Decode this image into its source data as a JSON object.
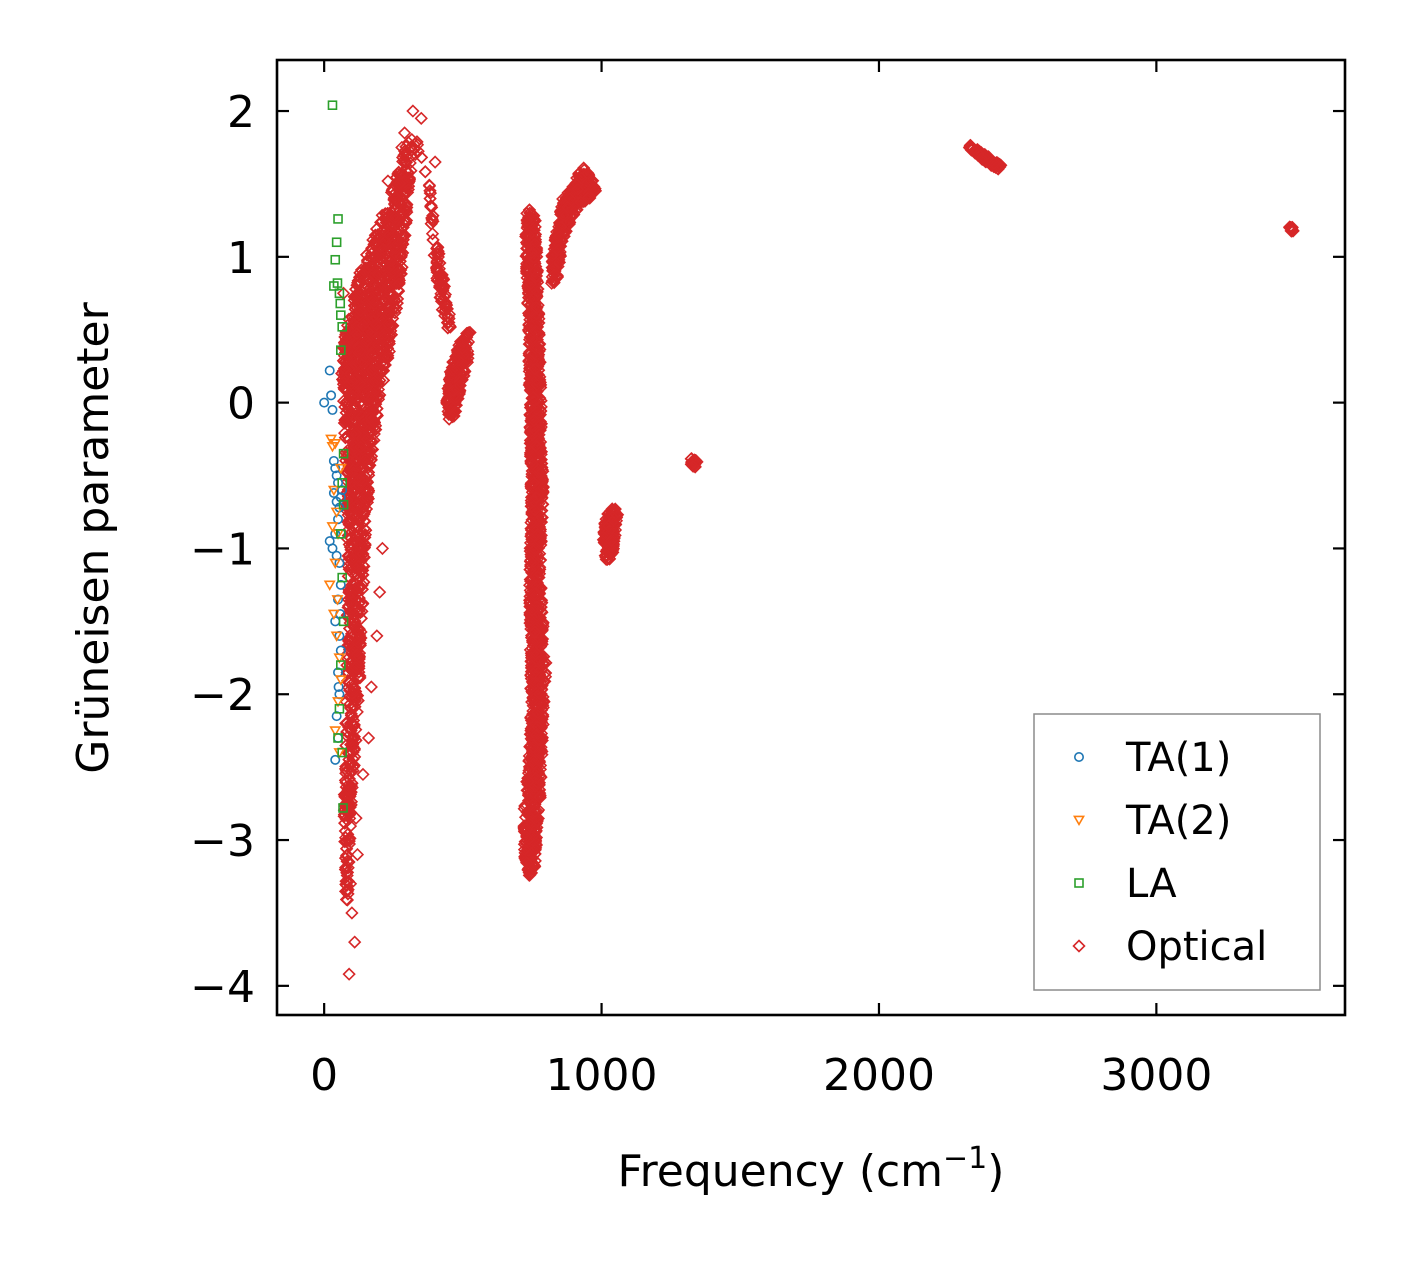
{
  "chart_data": {
    "type": "scatter",
    "title": "",
    "xlabel": "Frequency (cm",
    "xlabel_sup": "−1",
    "xlabel_close": ")",
    "ylabel": "Grüneisen parameter",
    "xlim": [
      -170,
      3680
    ],
    "ylim": [
      -4.2,
      2.35
    ],
    "xticks": [
      0,
      1000,
      2000,
      3000
    ],
    "xtick_labels": [
      "0",
      "1000",
      "2000",
      "3000"
    ],
    "yticks": [
      -4,
      -3,
      -2,
      -1,
      0,
      1,
      2
    ],
    "ytick_labels": [
      "−4",
      "−3",
      "−2",
      "−1",
      "0",
      "1",
      "2"
    ],
    "grid": false,
    "legend_position": "bottom-right",
    "series": [
      {
        "name": "TA(1)",
        "marker": "circle",
        "color": "#1f77b4",
        "points": [
          [
            20,
            0.22
          ],
          [
            25,
            0.05
          ],
          [
            30,
            -0.05
          ],
          [
            0,
            0.0
          ],
          [
            35,
            -0.4
          ],
          [
            40,
            -0.45
          ],
          [
            45,
            -0.5
          ],
          [
            50,
            -0.55
          ],
          [
            35,
            -0.62
          ],
          [
            45,
            -0.68
          ],
          [
            55,
            -0.72
          ],
          [
            60,
            -0.65
          ],
          [
            50,
            -0.8
          ],
          [
            40,
            -0.9
          ],
          [
            20,
            -0.95
          ],
          [
            30,
            -1.0
          ],
          [
            45,
            -1.05
          ],
          [
            55,
            -1.1
          ],
          [
            60,
            -1.25
          ],
          [
            50,
            -1.35
          ],
          [
            40,
            -1.5
          ],
          [
            55,
            -1.6
          ],
          [
            60,
            -1.7
          ],
          [
            50,
            -1.85
          ],
          [
            55,
            -2.0
          ],
          [
            45,
            -2.15
          ],
          [
            50,
            -2.3
          ],
          [
            40,
            -2.45
          ],
          [
            65,
            -0.6
          ],
          [
            62,
            -0.9
          ],
          [
            58,
            -1.45
          ],
          [
            52,
            -1.95
          ]
        ]
      },
      {
        "name": "TA(2)",
        "marker": "triangle-down",
        "color": "#ff7f0e",
        "points": [
          [
            25,
            -0.25
          ],
          [
            30,
            -0.3
          ],
          [
            40,
            -0.28
          ],
          [
            35,
            -0.6
          ],
          [
            45,
            -0.75
          ],
          [
            30,
            -0.85
          ],
          [
            50,
            -0.9
          ],
          [
            40,
            -1.1
          ],
          [
            20,
            -1.25
          ],
          [
            35,
            -1.45
          ],
          [
            45,
            -1.6
          ],
          [
            55,
            -1.75
          ],
          [
            60,
            -1.9
          ],
          [
            50,
            -2.05
          ],
          [
            40,
            -2.25
          ],
          [
            55,
            -2.4
          ],
          [
            60,
            -0.45
          ],
          [
            48,
            -1.35
          ]
        ]
      },
      {
        "name": "LA",
        "marker": "square",
        "color": "#2ca02c",
        "points": [
          [
            30,
            2.04
          ],
          [
            50,
            1.26
          ],
          [
            45,
            1.1
          ],
          [
            40,
            0.98
          ],
          [
            35,
            0.8
          ],
          [
            55,
            0.75
          ],
          [
            60,
            0.6
          ],
          [
            65,
            0.52
          ],
          [
            60,
            0.36
          ],
          [
            70,
            -0.35
          ],
          [
            65,
            -0.55
          ],
          [
            70,
            -0.7
          ],
          [
            60,
            -0.9
          ],
          [
            65,
            -1.2
          ],
          [
            70,
            -1.5
          ],
          [
            60,
            -1.8
          ],
          [
            55,
            -2.1
          ],
          [
            50,
            -2.3
          ],
          [
            65,
            -2.4
          ],
          [
            68,
            -2.78
          ],
          [
            48,
            0.82
          ],
          [
            58,
            0.68
          ]
        ]
      },
      {
        "name": "Optical",
        "marker": "diamond",
        "color": "#d62728",
        "regions": [
          {
            "poly": [
              [
                60,
                0.3
              ],
              [
                90,
                0.6
              ],
              [
                130,
                0.9
              ],
              [
                170,
                1.1
              ],
              [
                220,
                1.35
              ],
              [
                260,
                1.55
              ],
              [
                300,
                1.8
              ],
              [
                330,
                1.85
              ],
              [
                360,
                1.6
              ],
              [
                380,
                1.4
              ],
              [
                390,
                1.1
              ],
              [
                400,
                0.9
              ],
              [
                420,
                0.7
              ],
              [
                440,
                0.5
              ],
              [
                460,
                0.5
              ],
              [
                440,
                0.75
              ],
              [
                420,
                0.95
              ],
              [
                400,
                1.2
              ],
              [
                380,
                1.5
              ],
              [
                350,
                1.7
              ],
              [
                320,
                1.7
              ],
              [
                300,
                1.3
              ],
              [
                280,
                0.9
              ],
              [
                260,
                0.6
              ],
              [
                230,
                0.3
              ],
              [
                200,
                0.0
              ],
              [
                170,
                -0.4
              ],
              [
                150,
                -0.9
              ],
              [
                140,
                -1.4
              ],
              [
                130,
                -1.9
              ],
              [
                120,
                -2.2
              ],
              [
                100,
                -2.7
              ],
              [
                90,
                -3.3
              ],
              [
                80,
                -3.5
              ],
              [
                70,
                -3.0
              ],
              [
                75,
                -2.4
              ],
              [
                80,
                -1.8
              ],
              [
                85,
                -1.2
              ],
              [
                80,
                -0.6
              ],
              [
                70,
                0.0
              ]
            ],
            "n": 2600
          },
          {
            "poly": [
              [
                450,
                0.2
              ],
              [
                480,
                0.38
              ],
              [
                510,
                0.48
              ],
              [
                530,
                0.5
              ],
              [
                520,
                0.3
              ],
              [
                500,
                0.15
              ],
              [
                480,
                0.0
              ],
              [
                470,
                -0.1
              ],
              [
                450,
                -0.12
              ],
              [
                440,
                0.0
              ]
            ],
            "n": 220
          },
          {
            "poly": [
              [
                730,
                1.35
              ],
              [
                760,
                1.3
              ],
              [
                770,
                1.0
              ],
              [
                780,
                0.2
              ],
              [
                790,
                -0.6
              ],
              [
                780,
                -1.2
              ],
              [
                800,
                -1.8
              ],
              [
                790,
                -2.2
              ],
              [
                780,
                -2.7
              ],
              [
                770,
                -2.9
              ],
              [
                760,
                -3.2
              ],
              [
                740,
                -3.25
              ],
              [
                720,
                -3.1
              ],
              [
                720,
                -2.8
              ],
              [
                740,
                -2.4
              ],
              [
                745,
                -1.9
              ],
              [
                740,
                -1.3
              ],
              [
                745,
                -0.7
              ],
              [
                740,
                0.0
              ],
              [
                735,
                0.6
              ],
              [
                725,
                1.1
              ]
            ],
            "n": 1500
          },
          {
            "poly": [
              [
                820,
                1.0
              ],
              [
                860,
                1.4
              ],
              [
                900,
                1.5
              ],
              [
                930,
                1.62
              ],
              [
                960,
                1.58
              ],
              [
                980,
                1.45
              ],
              [
                950,
                1.38
              ],
              [
                920,
                1.35
              ],
              [
                890,
                1.25
              ],
              [
                860,
                1.1
              ],
              [
                840,
                0.85
              ],
              [
                820,
                0.8
              ]
            ],
            "n": 360
          },
          {
            "poly": [
              [
                1010,
                -0.8
              ],
              [
                1040,
                -0.7
              ],
              [
                1060,
                -0.75
              ],
              [
                1050,
                -0.9
              ],
              [
                1040,
                -1.05
              ],
              [
                1020,
                -1.1
              ],
              [
                1005,
                -1.0
              ]
            ],
            "n": 140
          },
          {
            "poly": [
              [
                1320,
                -0.38
              ],
              [
                1345,
                -0.4
              ],
              [
                1340,
                -0.45
              ],
              [
                1325,
                -0.44
              ]
            ],
            "n": 25
          },
          {
            "poly": [
              [
                2320,
                1.78
              ],
              [
                2360,
                1.73
              ],
              [
                2400,
                1.68
              ],
              [
                2440,
                1.63
              ],
              [
                2430,
                1.6
              ],
              [
                2390,
                1.64
              ],
              [
                2350,
                1.7
              ],
              [
                2315,
                1.75
              ]
            ],
            "n": 80
          },
          {
            "poly": [
              [
                3480,
                1.21
              ],
              [
                3500,
                1.2
              ],
              [
                3495,
                1.17
              ],
              [
                3478,
                1.18
              ]
            ],
            "n": 12
          }
        ],
        "outliers": [
          [
            320,
            2.0
          ],
          [
            290,
            1.85
          ],
          [
            280,
            1.75
          ],
          [
            230,
            1.52
          ],
          [
            400,
            1.65
          ],
          [
            350,
            1.95
          ],
          [
            90,
            -3.92
          ],
          [
            110,
            -3.7
          ],
          [
            100,
            -3.5
          ],
          [
            95,
            -3.3
          ],
          [
            120,
            -3.1
          ],
          [
            115,
            -2.85
          ],
          [
            140,
            -2.55
          ],
          [
            160,
            -2.3
          ],
          [
            170,
            -1.95
          ],
          [
            190,
            -1.6
          ],
          [
            200,
            -1.3
          ],
          [
            210,
            -1.0
          ],
          [
            70,
            0.75
          ],
          [
            75,
            0.45
          ],
          [
            100,
            0.15
          ],
          [
            130,
            0.35
          ],
          [
            150,
            0.55
          ]
        ]
      }
    ]
  }
}
